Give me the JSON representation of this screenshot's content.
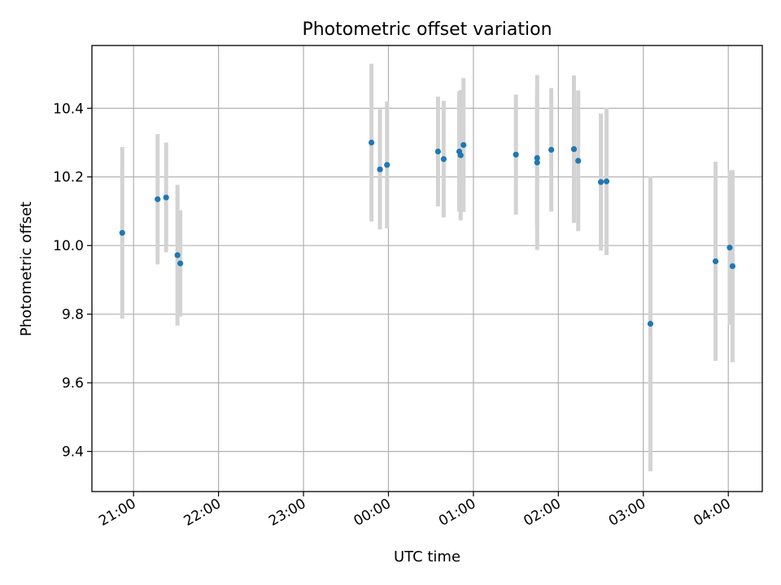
{
  "chart_data": {
    "type": "scatter",
    "title": "Photometric offset variation",
    "xlabel": "UTC time",
    "ylabel": "Photometric offset",
    "x_tick_labels": [
      "21:00",
      "22:00",
      "23:00",
      "00:00",
      "01:00",
      "02:00",
      "03:00",
      "04:00"
    ],
    "x_tick_hours": [
      21,
      22,
      23,
      24,
      25,
      26,
      27,
      28
    ],
    "y_ticks": [
      9.4,
      9.6,
      9.8,
      10.0,
      10.2,
      10.4
    ],
    "y_tick_labels": [
      "9.4",
      "9.6",
      "9.8",
      "10.0",
      "10.2",
      "10.4"
    ],
    "xlim_hours": [
      20.51,
      28.4
    ],
    "ylim": [
      9.283,
      10.583
    ],
    "grid": true,
    "colors": {
      "points": "#1f77b4",
      "error_bars": "#d3d3d3",
      "grid": "#b0b0b0"
    },
    "points": [
      {
        "t": "20:52",
        "y": 10.037,
        "err": 0.25
      },
      {
        "t": "21:17",
        "y": 10.135,
        "err": 0.19
      },
      {
        "t": "21:23",
        "y": 10.14,
        "err": 0.16
      },
      {
        "t": "21:31",
        "y": 9.972,
        "err": 0.205
      },
      {
        "t": "21:33",
        "y": 9.948,
        "err": 0.155
      },
      {
        "t": "23:48",
        "y": 10.3,
        "err": 0.23
      },
      {
        "t": "23:54",
        "y": 10.222,
        "err": 0.175
      },
      {
        "t": "23:59",
        "y": 10.235,
        "err": 0.185
      },
      {
        "t": "00:35",
        "y": 10.274,
        "err": 0.16
      },
      {
        "t": "00:39",
        "y": 10.252,
        "err": 0.17
      },
      {
        "t": "00:50",
        "y": 10.274,
        "err": 0.175
      },
      {
        "t": "00:51",
        "y": 10.263,
        "err": 0.19
      },
      {
        "t": "00:53",
        "y": 10.293,
        "err": 0.195
      },
      {
        "t": "01:30",
        "y": 10.265,
        "err": 0.175
      },
      {
        "t": "01:45",
        "y": 10.242,
        "err": 0.255
      },
      {
        "t": "01:45",
        "y": 10.255,
        "err": 0.2
      },
      {
        "t": "01:55",
        "y": 10.279,
        "err": 0.18
      },
      {
        "t": "02:11",
        "y": 10.281,
        "err": 0.215
      },
      {
        "t": "02:14",
        "y": 10.247,
        "err": 0.205
      },
      {
        "t": "02:30",
        "y": 10.185,
        "err": 0.2
      },
      {
        "t": "02:34",
        "y": 10.187,
        "err": 0.215
      },
      {
        "t": "03:05",
        "y": 9.772,
        "err": 0.43
      },
      {
        "t": "03:51",
        "y": 9.954,
        "err": 0.29
      },
      {
        "t": "04:01",
        "y": 9.994,
        "err": 0.225
      },
      {
        "t": "04:03",
        "y": 9.94,
        "err": 0.28
      }
    ]
  }
}
